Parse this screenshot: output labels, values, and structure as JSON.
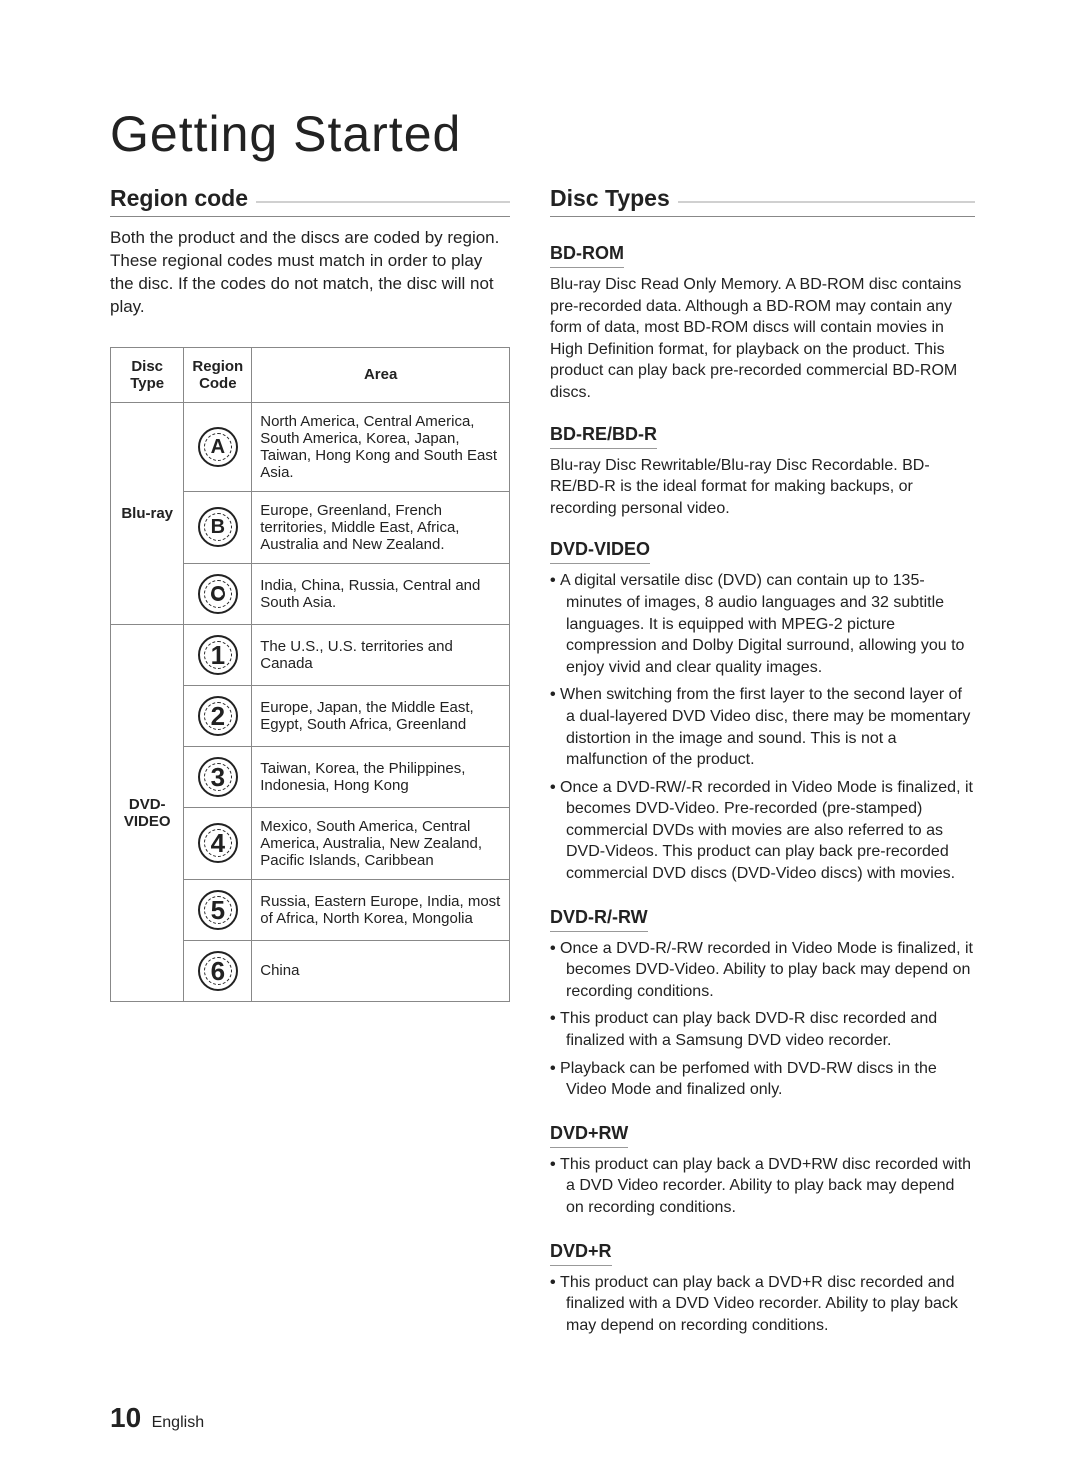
{
  "title": "Getting Started",
  "left": {
    "heading": "Region code",
    "intro": "Both the product and the discs are coded by region. These regional codes must match in order to play the disc. If the codes do not match, the disc will not play.",
    "table": {
      "headers": [
        "Disc Type",
        "Region Code",
        "Area"
      ],
      "groups": [
        {
          "disc_type": "Blu-ray",
          "rows": [
            {
              "code_label": "A",
              "icon_class": "bluray",
              "area": "North America, Central America, South America, Korea, Japan, Taiwan, Hong Kong and South East Asia."
            },
            {
              "code_label": "B",
              "icon_class": "bluray",
              "area": "Europe, Greenland, French territories, Middle East, Africa, Australia and New Zealand."
            },
            {
              "code_label": "C",
              "icon_class": "bluray c",
              "area": "India, China, Russia, Central and South Asia."
            }
          ]
        },
        {
          "disc_type": "DVD-VIDEO",
          "rows": [
            {
              "code_label": "1",
              "icon_class": "",
              "area": "The U.S., U.S. territories and Canada"
            },
            {
              "code_label": "2",
              "icon_class": "",
              "area": "Europe, Japan, the Middle East, Egypt, South Africa, Greenland"
            },
            {
              "code_label": "3",
              "icon_class": "",
              "area": "Taiwan, Korea, the Philippines, Indonesia, Hong Kong"
            },
            {
              "code_label": "4",
              "icon_class": "",
              "area": "Mexico, South America, Central America, Australia, New Zealand, Pacific Islands, Caribbean"
            },
            {
              "code_label": "5",
              "icon_class": "",
              "area": "Russia, Eastern Europe, India, most of Africa, North Korea, Mongolia"
            },
            {
              "code_label": "6",
              "icon_class": "",
              "area": "China"
            }
          ]
        }
      ]
    }
  },
  "right": {
    "heading": "Disc Types",
    "sections": [
      {
        "title": "BD-ROM",
        "paras": [
          "Blu-ray Disc Read Only Memory. A BD-ROM disc contains pre-recorded data. Although a BD-ROM may contain any form of data, most BD-ROM discs will contain movies in High Definition format, for playback on the product. This product can play back pre-recorded commercial BD-ROM discs."
        ],
        "bullets": []
      },
      {
        "title": "BD-RE/BD-R",
        "paras": [
          "Blu-ray Disc Rewritable/Blu-ray Disc Recordable. BD-RE/BD-R is the ideal format for making backups, or recording personal video."
        ],
        "bullets": []
      },
      {
        "title": "DVD-VIDEO",
        "paras": [],
        "bullets": [
          "A digital versatile disc (DVD) can contain up to 135-minutes of images, 8 audio languages and 32 subtitle languages. It is equipped with MPEG-2 picture compression and Dolby Digital surround, allowing you to enjoy vivid and clear quality images.",
          "When switching from the first layer to the second layer of a dual-layered DVD Video disc, there may be momentary distortion in the image and sound. This is not a malfunction of the product.",
          "Once a DVD-RW/-R recorded in Video Mode is finalized, it becomes DVD-Video. Pre-recorded (pre-stamped) commercial DVDs with movies are also referred to as DVD-Videos. This product can play back pre-recorded commercial DVD discs (DVD-Video discs) with movies."
        ]
      },
      {
        "title": "DVD-R/-RW",
        "paras": [],
        "bullets": [
          "Once a DVD-R/-RW recorded in Video Mode is finalized, it becomes DVD-Video. Ability to play back may depend on recording conditions.",
          "This product can play back DVD-R disc recorded and finalized with a Samsung DVD video recorder.",
          "Playback can be perfomed with DVD-RW discs in the Video Mode and finalized only."
        ]
      },
      {
        "title": "DVD+RW",
        "paras": [],
        "bullets": [
          "This product can play back a DVD+RW disc recorded with a DVD Video recorder. Ability to play back may depend on recording conditions."
        ]
      },
      {
        "title": "DVD+R",
        "paras": [],
        "bullets": [
          "This product can play back a DVD+R disc recorded and finalized with a DVD Video recorder. Ability to play back may depend on recording conditions."
        ]
      }
    ]
  },
  "footer": {
    "page": "10",
    "lang": "English"
  }
}
